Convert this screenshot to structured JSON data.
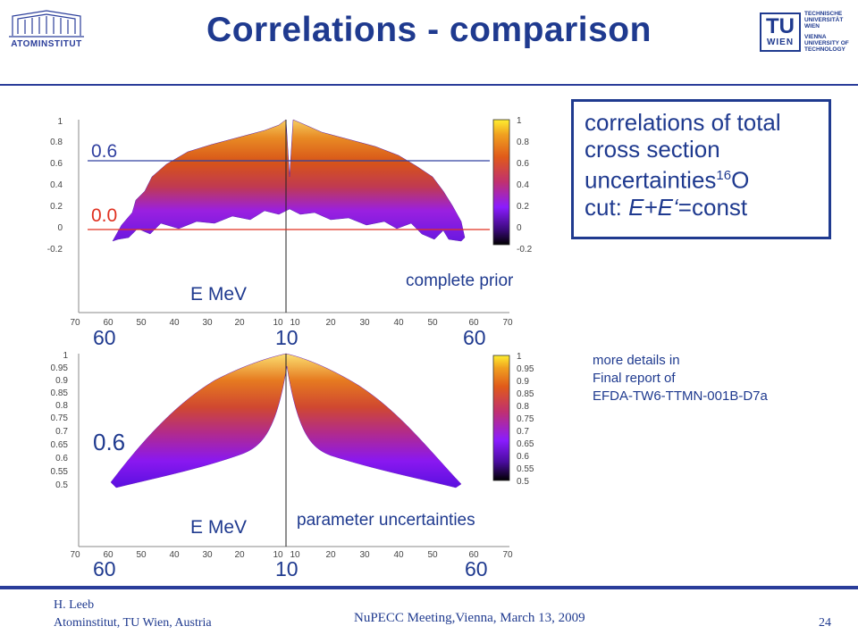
{
  "header": {
    "title": "Correlations - comparison",
    "left_logo_text": "ATOMINSTITUT",
    "right_logo": {
      "mark": "TU",
      "mark_sub": "WIEN",
      "text_de": [
        "TECHNISCHE",
        "UNIVERSITÄT",
        "WIEN"
      ],
      "text_en": [
        "VIENNA",
        "UNIVERSITY OF",
        "TECHNOLOGY"
      ]
    }
  },
  "infobox": {
    "line1": "correlations of total",
    "line2": "cross section",
    "line3_pre": "uncertainties",
    "line3_sup": "16",
    "line3_post": "O",
    "line4_pre": "cut: ",
    "line4_italic": "E+E‘",
    "line4_post": "=const"
  },
  "details": {
    "line1": "more details in",
    "line2": "Final report of",
    "line3": "EFDA-TW6-TTMN-001B-D7a"
  },
  "plot_top": {
    "label": "complete prior",
    "xlabel": "E  MeV",
    "ann_high": "0.6",
    "ann_low": "0.0",
    "big_ticks": [
      "60",
      "10",
      "60"
    ],
    "yticks": [
      "1",
      "0.8",
      "0.6",
      "0.4",
      "0.2",
      "0",
      "-0.2"
    ],
    "xticks": [
      "70",
      "60",
      "50",
      "40",
      "30",
      "20",
      "10",
      "10",
      "20",
      "30",
      "40",
      "50",
      "60",
      "70"
    ],
    "cbar_ticks": [
      "1",
      "0.8",
      "0.6",
      "0.4",
      "0.2",
      "0",
      "-0.2"
    ]
  },
  "plot_bottom": {
    "label": "parameter uncertainties",
    "xlabel": "E  MeV",
    "ann": "0.6",
    "big_ticks": [
      "60",
      "10",
      "60"
    ],
    "yticks": [
      "1",
      "0.95",
      "0.9",
      "0.85",
      "0.8",
      "0.75",
      "0.7",
      "0.65",
      "0.6",
      "0.55",
      "0.5"
    ],
    "xticks": [
      "70",
      "60",
      "50",
      "40",
      "30",
      "20",
      "10",
      "10",
      "20",
      "30",
      "40",
      "50",
      "60",
      "70"
    ],
    "cbar_ticks": [
      "1",
      "0.95",
      "0.9",
      "0.85",
      "0.8",
      "0.75",
      "0.7",
      "0.65",
      "0.6",
      "0.55",
      "0.5"
    ]
  },
  "footer": {
    "author": "H. Leeb",
    "affiliation": "Atominstitut, TU Wien, Austria",
    "meeting": "NuPECC Meeting,Vienna, March 13, 2009",
    "page": "24"
  },
  "colors": {
    "brand": "#1f3a8f",
    "red_line": "#e03020",
    "blue_line": "#3040a0"
  }
}
